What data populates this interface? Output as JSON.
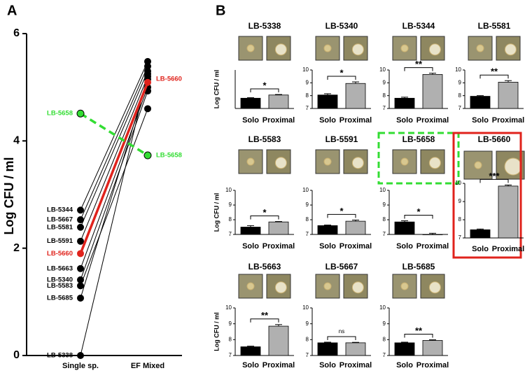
{
  "panel_labels": [
    "A",
    "B"
  ],
  "chart_data": [
    {
      "type": "paired-line",
      "ylabel": "Log CFU / ml",
      "categories": [
        "Single sp.",
        "EF Mixed"
      ],
      "ylim": [
        0,
        6
      ],
      "yticks": [
        0,
        2,
        4,
        6
      ],
      "series": [
        {
          "name": "LB-5344",
          "color": "#000000",
          "values": [
            2.71,
            5.48
          ]
        },
        {
          "name": "LB-5667",
          "color": "#000000",
          "values": [
            2.53,
            5.39
          ]
        },
        {
          "name": "LB-5581",
          "color": "#000000",
          "values": [
            2.39,
            5.3
          ]
        },
        {
          "name": "LB-5591",
          "color": "#000000",
          "values": [
            2.13,
            5.2
          ]
        },
        {
          "name": "LB-5663",
          "color": "#000000",
          "values": [
            1.62,
            5.0
          ]
        },
        {
          "name": "LB-5340",
          "color": "#000000",
          "values": [
            1.41,
            4.93
          ]
        },
        {
          "name": "LB-5583",
          "color": "#000000",
          "values": [
            1.3,
            4.6
          ]
        },
        {
          "name": "LB-5685",
          "color": "#000000",
          "values": [
            1.07,
            5.15
          ]
        },
        {
          "name": "LB-5338",
          "color": "#000000",
          "values": [
            0,
            5.25
          ]
        },
        {
          "name": "LB-5660",
          "color": "#e0231c",
          "values": [
            1.9,
            5.09
          ]
        },
        {
          "name": "LB-5658",
          "color": "#33dd33",
          "dashed": true,
          "values": [
            4.51,
            3.73
          ]
        }
      ]
    },
    {
      "type": "bar",
      "title": "LB-5338",
      "ylabel": "Log CFU / ml",
      "categories": [
        "Solo",
        "Proximal"
      ],
      "values": [
        7.8,
        8.05
      ],
      "errors": [
        0.04,
        0.04
      ],
      "ylim": [
        7,
        10
      ],
      "significance": "*"
    },
    {
      "type": "bar",
      "title": "LB-5340",
      "categories": [
        "Solo",
        "Proximal"
      ],
      "values": [
        8.05,
        8.95
      ],
      "errors": [
        0.1,
        0.12
      ],
      "ylim": [
        7,
        10
      ],
      "yticks": [
        7,
        8,
        9,
        10
      ],
      "significance": "*"
    },
    {
      "type": "bar",
      "title": "LB-5344",
      "categories": [
        "Solo",
        "Proximal"
      ],
      "values": [
        7.8,
        9.65
      ],
      "errors": [
        0.08,
        0.1
      ],
      "ylim": [
        7,
        10
      ],
      "yticks": [
        7,
        8,
        9,
        10
      ],
      "significance": "**"
    },
    {
      "type": "bar",
      "title": "LB-5581",
      "categories": [
        "Solo",
        "Proximal"
      ],
      "values": [
        7.95,
        9.05
      ],
      "errors": [
        0.05,
        0.12
      ],
      "ylim": [
        7,
        10
      ],
      "yticks": [
        7,
        8,
        9,
        10
      ],
      "significance": "**"
    },
    {
      "type": "bar",
      "title": "LB-5583",
      "ylabel": "Log CFU / ml",
      "categories": [
        "Solo",
        "Proximal"
      ],
      "values": [
        7.5,
        7.85
      ],
      "errors": [
        0.1,
        0.03
      ],
      "ylim": [
        7,
        10
      ],
      "yticks": [
        7,
        8,
        9,
        10
      ],
      "significance": "*"
    },
    {
      "type": "bar",
      "title": "LB-5591",
      "categories": [
        "Solo",
        "Proximal"
      ],
      "values": [
        7.6,
        7.9
      ],
      "errors": [
        0.04,
        0.08
      ],
      "ylim": [
        7,
        10
      ],
      "yticks": [
        7,
        8,
        9,
        10
      ],
      "significance": "*"
    },
    {
      "type": "bar",
      "title": "LB-5658",
      "categories": [
        "Solo",
        "Proximal"
      ],
      "values": [
        7.85,
        7.0
      ],
      "errors": [
        0.08,
        0.08
      ],
      "ylim": [
        7,
        10
      ],
      "yticks": [
        7,
        8,
        9,
        10
      ],
      "significance": "*",
      "frame_color": "#33dd33",
      "frame_style": "dashed"
    },
    {
      "type": "bar",
      "title": "LB-5660",
      "categories": [
        "Solo",
        "Proximal"
      ],
      "values": [
        7.45,
        9.85
      ],
      "errors": [
        0.04,
        0.06
      ],
      "ylim": [
        7,
        10
      ],
      "yticks": [
        7,
        8,
        9,
        10
      ],
      "significance": "***",
      "frame_color": "#e0231c",
      "frame_style": "solid"
    },
    {
      "type": "bar",
      "title": "LB-5663",
      "ylabel": "Log CFU / ml",
      "categories": [
        "Solo",
        "Proximal"
      ],
      "values": [
        7.55,
        8.85
      ],
      "errors": [
        0.04,
        0.1
      ],
      "ylim": [
        7,
        10
      ],
      "yticks": [
        7,
        8,
        9,
        10
      ],
      "significance": "**"
    },
    {
      "type": "bar",
      "title": "LB-5667",
      "categories": [
        "Solo",
        "Proximal"
      ],
      "values": [
        7.8,
        7.8
      ],
      "errors": [
        0.04,
        0.03
      ],
      "ylim": [
        7,
        10
      ],
      "yticks": [
        7,
        8,
        9,
        10
      ],
      "significance": "ns"
    },
    {
      "type": "bar",
      "title": "LB-5685",
      "categories": [
        "Solo",
        "Proximal"
      ],
      "values": [
        7.8,
        7.95
      ],
      "errors": [
        0.04,
        0.04
      ],
      "ylim": [
        7,
        10
      ],
      "yticks": [
        7,
        8,
        9,
        10
      ],
      "significance": "**"
    }
  ]
}
